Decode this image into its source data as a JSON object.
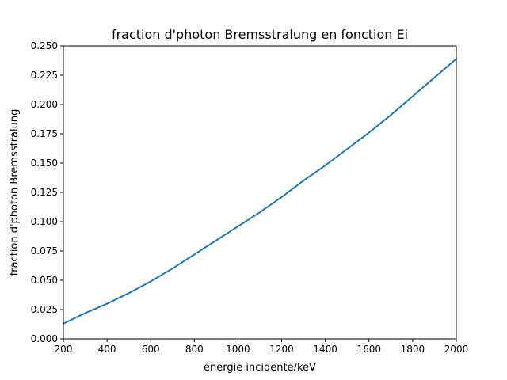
{
  "chart_data": {
    "type": "line",
    "title": "fraction d'photon Bremsstralung en fonction Ei",
    "xlabel": "énergie incidente/keV",
    "ylabel": "fraction d'photon Bremsstralung",
    "xlim": [
      200,
      2000
    ],
    "ylim": [
      0,
      0.25
    ],
    "xticks": [
      200,
      400,
      600,
      800,
      1000,
      1200,
      1400,
      1600,
      1800,
      2000
    ],
    "xtick_labels": [
      "200",
      "400",
      "600",
      "800",
      "1000",
      "1200",
      "1400",
      "1600",
      "1800",
      "2000"
    ],
    "yticks": [
      0,
      0.025,
      0.05,
      0.075,
      0.1,
      0.125,
      0.15,
      0.175,
      0.2,
      0.225,
      0.25
    ],
    "ytick_labels": [
      "0.000",
      "0.025",
      "0.050",
      "0.075",
      "0.100",
      "0.125",
      "0.150",
      "0.175",
      "0.200",
      "0.225",
      "0.250"
    ],
    "grid": false,
    "series": [
      {
        "color": "#1f77b4",
        "x": [
          200,
          300,
          400,
          500,
          600,
          700,
          800,
          900,
          1000,
          1100,
          1200,
          1300,
          1400,
          1500,
          1600,
          1700,
          1800,
          1900,
          2000
        ],
        "y": [
          0.013,
          0.022,
          0.03,
          0.039,
          0.049,
          0.06,
          0.072,
          0.084,
          0.096,
          0.108,
          0.121,
          0.135,
          0.148,
          0.162,
          0.176,
          0.191,
          0.207,
          0.223,
          0.239
        ]
      }
    ]
  }
}
